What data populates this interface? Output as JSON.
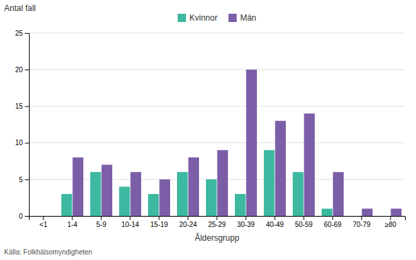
{
  "chart_data": {
    "type": "bar",
    "ylabel": "Antal fall",
    "xlabel": "Åldersgrupp",
    "annotations": [
      "Källa: Folkhälsomyndigheten"
    ],
    "categories": [
      "<1",
      "1-4",
      "5-9",
      "10-14",
      "15-19",
      "20-24",
      "25-29",
      "30-39",
      "40-49",
      "50-59",
      "60-69",
      "70-79",
      "≥80"
    ],
    "series": [
      {
        "name": "Kvinnor",
        "color": "#3cb9a0",
        "values": [
          0,
          3,
          6,
          4,
          3,
          6,
          5,
          3,
          9,
          6,
          1,
          0,
          0
        ]
      },
      {
        "name": "Män",
        "color": "#7b5ea7",
        "values": [
          0,
          8,
          7,
          6,
          5,
          8,
          9,
          20,
          13,
          14,
          6,
          1,
          1
        ]
      }
    ],
    "ylim": [
      0,
      25
    ],
    "yticks": [
      0,
      5,
      10,
      15,
      20,
      25
    ],
    "grid": true,
    "legend": "top"
  }
}
